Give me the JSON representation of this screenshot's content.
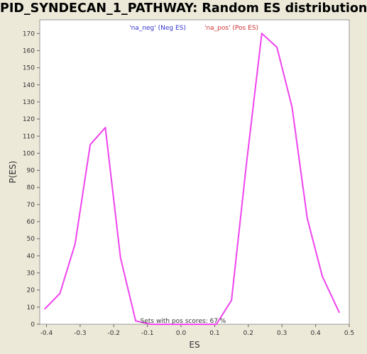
{
  "chart_data": {
    "type": "line",
    "title": "PID_SYNDECAN_1_PATHWAY: Random ES distribution",
    "xlabel": "ES",
    "ylabel": "P(ES)",
    "xlim": [
      -0.42,
      0.5
    ],
    "ylim": [
      0,
      178
    ],
    "x_ticks": [
      -0.4,
      -0.3,
      -0.2,
      -0.1,
      0.0,
      0.1,
      0.2,
      0.3,
      0.4,
      0.5
    ],
    "x_tick_labels": [
      "-0.4",
      "-0.3",
      "-0.2",
      "-0.1",
      "0.0",
      "0.1",
      "0.2",
      "0.3",
      "0.4",
      "0.5"
    ],
    "y_ticks": [
      0,
      10,
      20,
      30,
      40,
      50,
      60,
      70,
      80,
      90,
      100,
      110,
      120,
      130,
      140,
      150,
      160,
      170
    ],
    "y_tick_labels": [
      "0",
      "10",
      "20",
      "30",
      "40",
      "50",
      "60",
      "70",
      "80",
      "90",
      "100",
      "110",
      "120",
      "130",
      "140",
      "150",
      "160",
      "170"
    ],
    "grid": false,
    "legend": [
      {
        "label": "'na_neg' (Neg ES)",
        "color": "#3333cc"
      },
      {
        "label": "'na_pos' (Pos ES)",
        "color": "#cc3333"
      }
    ],
    "annotation": "Sets with pos scores: 67 %",
    "series": [
      {
        "color": "#ee44ee",
        "x": [
          -0.405,
          -0.36,
          -0.315,
          -0.27,
          -0.225,
          -0.18,
          -0.135,
          -0.09,
          -0.045,
          0.0,
          0.06,
          0.105,
          0.15,
          0.195,
          0.24,
          0.285,
          0.33,
          0.375,
          0.42,
          0.47
        ],
        "y": [
          9,
          18,
          47,
          105,
          115,
          39,
          2,
          0,
          0,
          0,
          0,
          0,
          14,
          95,
          170,
          162,
          127,
          62,
          28,
          7
        ]
      }
    ]
  }
}
